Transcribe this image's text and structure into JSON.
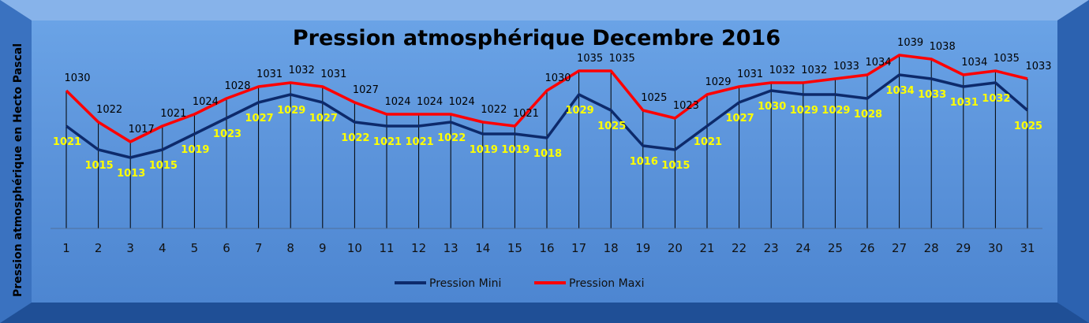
{
  "chart_data": {
    "type": "line",
    "title": "Pression atmosphérique Decembre 2016",
    "ylabel": "Pression atmosphérique en Hecto Pascal",
    "xlabel": "",
    "categories": [
      "1",
      "2",
      "3",
      "4",
      "5",
      "6",
      "7",
      "8",
      "9",
      "10",
      "11",
      "12",
      "13",
      "14",
      "15",
      "16",
      "17",
      "18",
      "19",
      "20",
      "21",
      "22",
      "23",
      "24",
      "25",
      "26",
      "27",
      "28",
      "29",
      "30",
      "31"
    ],
    "series": [
      {
        "name": "Pression Mini",
        "color": "#0d2a6b",
        "values": [
          1021,
          1015,
          1013,
          1015,
          1019,
          1023,
          1027,
          1029,
          1027,
          1022,
          1021,
          1021,
          1022,
          1019,
          1019,
          1018,
          1029,
          1025,
          1016,
          1015,
          1021,
          1027,
          1030,
          1029,
          1029,
          1028,
          1034,
          1033,
          1031,
          1032,
          1025
        ]
      },
      {
        "name": "Pression Maxi",
        "color": "#ff0000",
        "values": [
          1030,
          1022,
          1017,
          1021,
          1024,
          1028,
          1031,
          1032,
          1031,
          1027,
          1024,
          1024,
          1024,
          1022,
          1021,
          1030,
          1035,
          1035,
          1025,
          1023,
          1029,
          1031,
          1032,
          1032,
          1033,
          1034,
          1039,
          1038,
          1034,
          1035,
          1033
        ]
      }
    ],
    "ylim": [
      995,
      1045
    ],
    "grid": false,
    "drop_lines": true,
    "data_labels": true,
    "legend_position": "bottom"
  }
}
